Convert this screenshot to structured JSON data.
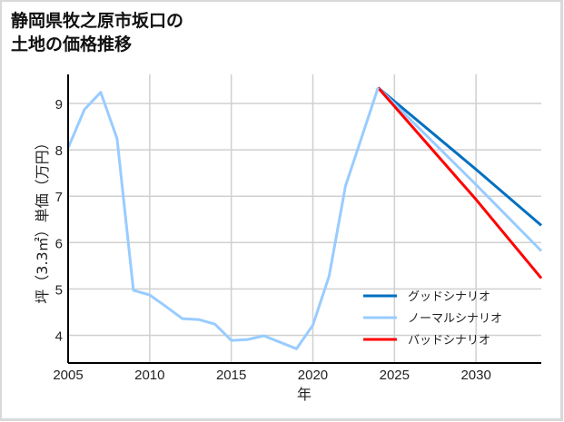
{
  "title": "静岡県牧之原市坂口の\n土地の価格推移",
  "chart_data": {
    "type": "line",
    "title": "静岡県牧之原市坂口の土地の価格推移",
    "xlabel": "年",
    "ylabel": "坪（3.3㎡）単価（万円）",
    "xlim": [
      2005,
      2034
    ],
    "ylim": [
      3.45,
      9.65
    ],
    "xticks": [
      2005,
      2010,
      2015,
      2020,
      2025,
      2030
    ],
    "yticks": [
      4,
      5,
      6,
      7,
      8,
      9
    ],
    "grid": true,
    "legend_position": "lower right",
    "series": [
      {
        "name": "ノーマルシナリオ",
        "role": "historical",
        "color": "#99ccff",
        "x": [
          2005,
          2006,
          2007,
          2008,
          2009,
          2010,
          2011,
          2012,
          2013,
          2014,
          2015,
          2016,
          2017,
          2018,
          2019,
          2020,
          2021,
          2022,
          2023,
          2024
        ],
        "values": [
          8.04,
          8.87,
          9.24,
          8.24,
          4.97,
          4.87,
          4.62,
          4.36,
          4.34,
          4.24,
          3.89,
          3.91,
          3.99,
          3.85,
          3.71,
          4.22,
          5.28,
          7.22,
          8.28,
          9.34
        ]
      },
      {
        "name": "グッドシナリオ",
        "color": "#0070c0",
        "x": [
          2024,
          2030,
          2034
        ],
        "values": [
          9.34,
          7.58,
          6.37
        ]
      },
      {
        "name": "ノーマルシナリオ",
        "color": "#99ccff",
        "x": [
          2024,
          2030,
          2034
        ],
        "values": [
          9.34,
          7.25,
          5.82
        ]
      },
      {
        "name": "バッドシナリオ",
        "color": "#ff0000",
        "x": [
          2024,
          2030,
          2034
        ],
        "values": [
          9.34,
          6.93,
          5.23
        ]
      }
    ],
    "legend": [
      {
        "label": "グッドシナリオ",
        "color": "#0070c0"
      },
      {
        "label": "ノーマルシナリオ",
        "color": "#99ccff"
      },
      {
        "label": "バッドシナリオ",
        "color": "#ff0000"
      }
    ]
  }
}
